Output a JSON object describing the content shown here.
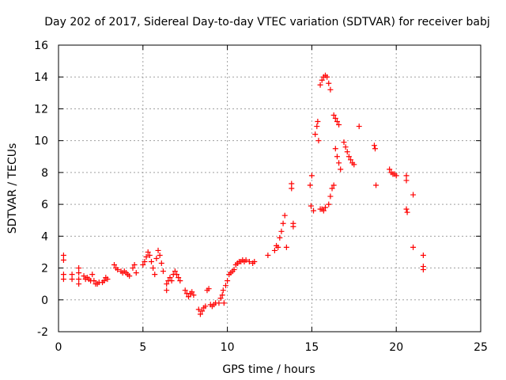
{
  "chart_data": {
    "type": "scatter",
    "title": "Day 202 of 2017, Sidereal Day-to-day VTEC variation (SDTVAR) for receiver babj",
    "xlabel": "GPS time / hours",
    "ylabel": "SDTVAR / TECUs",
    "xlim": [
      0,
      25
    ],
    "ylim": [
      -2,
      16
    ],
    "xticks": [
      0,
      5,
      10,
      15,
      20,
      25
    ],
    "yticks": [
      -2,
      0,
      2,
      4,
      6,
      8,
      10,
      12,
      14,
      16
    ],
    "grid": true,
    "marker": "+",
    "color": "#ff0000",
    "series": [
      {
        "name": "SDTVAR",
        "points": [
          [
            0.3,
            2.8
          ],
          [
            0.3,
            2.5
          ],
          [
            0.3,
            1.6
          ],
          [
            0.3,
            1.3
          ],
          [
            0.8,
            1.6
          ],
          [
            0.8,
            1.3
          ],
          [
            1.2,
            2.0
          ],
          [
            1.2,
            1.7
          ],
          [
            1.2,
            1.3
          ],
          [
            1.2,
            1.0
          ],
          [
            1.5,
            1.5
          ],
          [
            1.6,
            1.3
          ],
          [
            1.7,
            1.4
          ],
          [
            1.8,
            1.3
          ],
          [
            1.9,
            1.2
          ],
          [
            2.0,
            1.6
          ],
          [
            2.1,
            1.2
          ],
          [
            2.2,
            1.0
          ],
          [
            2.3,
            1.0
          ],
          [
            2.4,
            1.1
          ],
          [
            2.6,
            1.1
          ],
          [
            2.7,
            1.2
          ],
          [
            2.8,
            1.4
          ],
          [
            2.9,
            1.3
          ],
          [
            3.3,
            2.2
          ],
          [
            3.4,
            2.0
          ],
          [
            3.5,
            1.9
          ],
          [
            3.7,
            1.8
          ],
          [
            3.8,
            1.7
          ],
          [
            3.9,
            1.8
          ],
          [
            4.0,
            1.7
          ],
          [
            4.1,
            1.6
          ],
          [
            4.2,
            1.5
          ],
          [
            4.4,
            2.0
          ],
          [
            4.5,
            2.2
          ],
          [
            4.6,
            1.7
          ],
          [
            5.0,
            2.2
          ],
          [
            5.1,
            2.4
          ],
          [
            5.2,
            2.7
          ],
          [
            5.3,
            3.0
          ],
          [
            5.4,
            2.8
          ],
          [
            5.5,
            2.4
          ],
          [
            5.6,
            2.0
          ],
          [
            5.7,
            1.6
          ],
          [
            5.8,
            2.6
          ],
          [
            5.9,
            3.1
          ],
          [
            6.0,
            2.8
          ],
          [
            6.1,
            2.3
          ],
          [
            6.2,
            1.8
          ],
          [
            6.4,
            1.0
          ],
          [
            6.4,
            0.6
          ],
          [
            6.5,
            1.2
          ],
          [
            6.6,
            1.4
          ],
          [
            6.7,
            1.2
          ],
          [
            6.8,
            1.6
          ],
          [
            6.9,
            1.8
          ],
          [
            7.0,
            1.6
          ],
          [
            7.1,
            1.4
          ],
          [
            7.2,
            1.2
          ],
          [
            7.5,
            0.6
          ],
          [
            7.6,
            0.4
          ],
          [
            7.7,
            0.2
          ],
          [
            7.8,
            0.4
          ],
          [
            7.9,
            0.5
          ],
          [
            8.0,
            0.3
          ],
          [
            8.3,
            -0.6
          ],
          [
            8.4,
            -0.9
          ],
          [
            8.5,
            -0.7
          ],
          [
            8.6,
            -0.5
          ],
          [
            8.7,
            -0.4
          ],
          [
            8.8,
            0.6
          ],
          [
            8.9,
            0.7
          ],
          [
            9.0,
            -0.3
          ],
          [
            9.1,
            -0.4
          ],
          [
            9.2,
            -0.3
          ],
          [
            9.3,
            -0.2
          ],
          [
            9.5,
            -0.2
          ],
          [
            9.6,
            0.1
          ],
          [
            9.7,
            0.3
          ],
          [
            9.75,
            0.6
          ],
          [
            9.8,
            -0.2
          ],
          [
            9.9,
            0.9
          ],
          [
            10.0,
            1.2
          ],
          [
            10.1,
            1.6
          ],
          [
            10.2,
            1.7
          ],
          [
            10.3,
            1.8
          ],
          [
            10.4,
            1.9
          ],
          [
            10.5,
            2.2
          ],
          [
            10.6,
            2.3
          ],
          [
            10.7,
            2.4
          ],
          [
            10.8,
            2.4
          ],
          [
            10.9,
            2.5
          ],
          [
            11.0,
            2.4
          ],
          [
            11.1,
            2.5
          ],
          [
            11.3,
            2.4
          ],
          [
            11.5,
            2.3
          ],
          [
            11.6,
            2.4
          ],
          [
            12.4,
            2.8
          ],
          [
            12.8,
            3.1
          ],
          [
            12.9,
            3.4
          ],
          [
            13.0,
            3.3
          ],
          [
            13.1,
            3.9
          ],
          [
            13.2,
            4.3
          ],
          [
            13.3,
            4.8
          ],
          [
            13.4,
            5.3
          ],
          [
            13.5,
            3.3
          ],
          [
            13.8,
            7.3
          ],
          [
            13.8,
            7.0
          ],
          [
            13.9,
            4.8
          ],
          [
            13.9,
            4.6
          ],
          [
            14.9,
            7.2
          ],
          [
            14.95,
            5.9
          ],
          [
            15.0,
            7.8
          ],
          [
            15.1,
            5.6
          ],
          [
            15.2,
            10.4
          ],
          [
            15.3,
            10.9
          ],
          [
            15.35,
            11.2
          ],
          [
            15.4,
            10.0
          ],
          [
            15.5,
            5.7
          ],
          [
            15.6,
            5.7
          ],
          [
            15.7,
            5.6
          ],
          [
            15.8,
            5.8
          ],
          [
            15.5,
            13.5
          ],
          [
            15.6,
            13.8
          ],
          [
            15.7,
            14.0
          ],
          [
            15.8,
            14.1
          ],
          [
            15.9,
            14.0
          ],
          [
            16.0,
            13.6
          ],
          [
            16.1,
            13.2
          ],
          [
            16.0,
            6.0
          ],
          [
            16.1,
            6.5
          ],
          [
            16.2,
            7.0
          ],
          [
            16.3,
            7.2
          ],
          [
            16.3,
            11.6
          ],
          [
            16.4,
            11.4
          ],
          [
            16.5,
            11.2
          ],
          [
            16.6,
            11.0
          ],
          [
            16.4,
            9.5
          ],
          [
            16.5,
            9.0
          ],
          [
            16.6,
            8.6
          ],
          [
            16.7,
            8.2
          ],
          [
            16.9,
            9.9
          ],
          [
            17.0,
            9.6
          ],
          [
            17.1,
            9.3
          ],
          [
            17.2,
            9.0
          ],
          [
            17.3,
            8.8
          ],
          [
            17.4,
            8.6
          ],
          [
            17.5,
            8.5
          ],
          [
            17.8,
            10.9
          ],
          [
            18.7,
            9.7
          ],
          [
            18.75,
            9.5
          ],
          [
            18.8,
            7.2
          ],
          [
            19.6,
            8.2
          ],
          [
            19.7,
            8.0
          ],
          [
            19.8,
            7.9
          ],
          [
            19.9,
            7.9
          ],
          [
            20.0,
            7.8
          ],
          [
            20.6,
            7.8
          ],
          [
            20.6,
            7.5
          ],
          [
            20.6,
            5.7
          ],
          [
            20.65,
            5.5
          ],
          [
            21.0,
            6.6
          ],
          [
            21.0,
            3.3
          ],
          [
            21.6,
            2.8
          ],
          [
            21.6,
            2.1
          ],
          [
            21.6,
            1.9
          ]
        ]
      }
    ]
  }
}
